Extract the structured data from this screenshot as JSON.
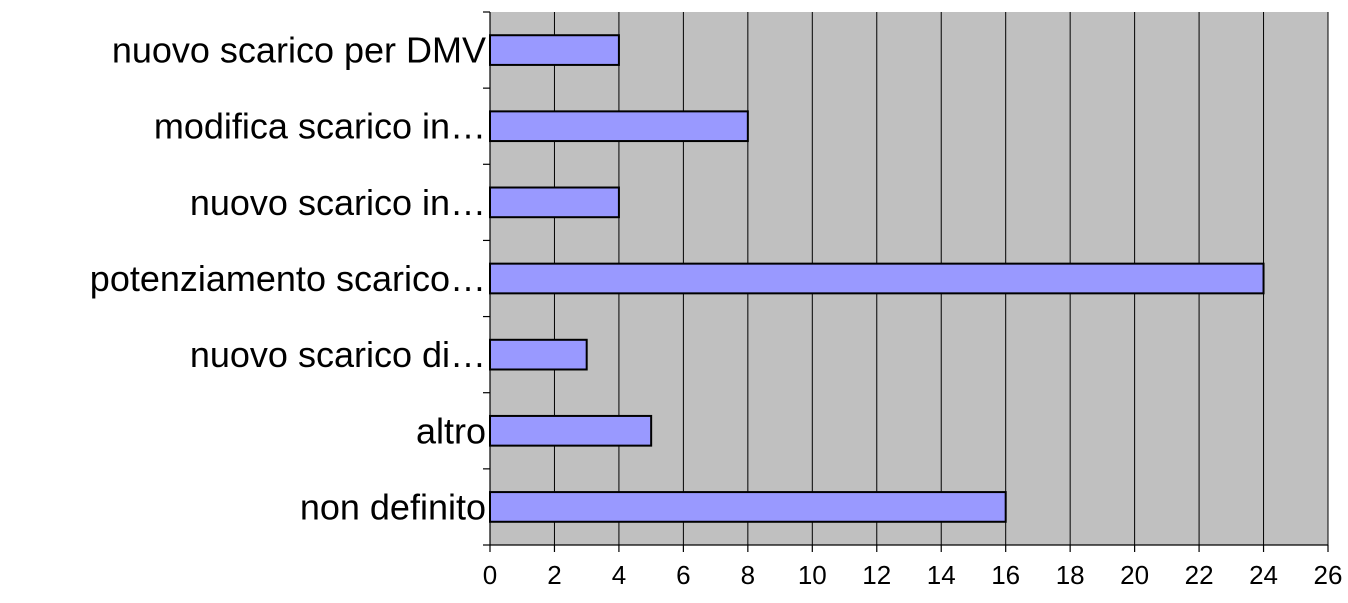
{
  "chart_data": {
    "type": "bar",
    "orientation": "horizontal",
    "categories": [
      "nuovo scarico per DMV",
      "modifica scarico in…",
      "nuovo scarico in…",
      "potenziamento scarico…",
      "nuovo scarico di…",
      "altro",
      "non definito"
    ],
    "values": [
      4,
      8,
      4,
      24,
      3,
      5,
      16
    ],
    "xlim": [
      0,
      26
    ],
    "xticks": [
      "0",
      "2",
      "4",
      "6",
      "8",
      "10",
      "12",
      "14",
      "16",
      "18",
      "20",
      "22",
      "24",
      "26"
    ],
    "grid": "vertical",
    "colors": {
      "bar_fill": "#9999ff",
      "bar_stroke": "#000000",
      "plot_background": "#c0c0c0",
      "gridline": "#000000"
    }
  }
}
